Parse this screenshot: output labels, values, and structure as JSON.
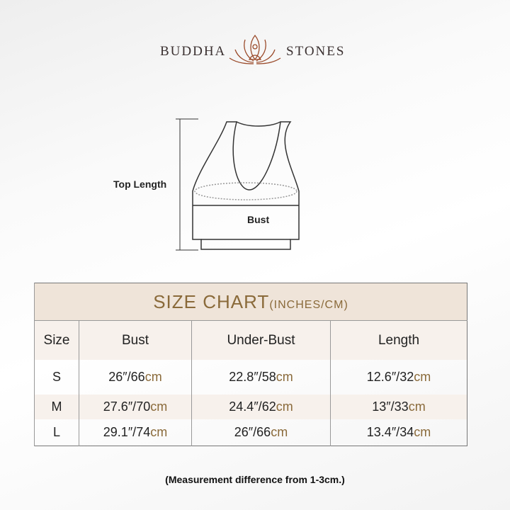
{
  "brand": {
    "left": "BUDDHA",
    "right": "STONES",
    "logo": "lotus-meditation-icon",
    "color": "#9a4a2a"
  },
  "diagram": {
    "top_length": "Top Length",
    "bust": "Bust"
  },
  "chart": {
    "title": "SIZE CHART",
    "title_units": "(INCHES/CM)",
    "headers": [
      "Size",
      "Bust",
      "Under-Bust",
      "Length"
    ],
    "rows": [
      {
        "size": "S",
        "bust": "26″/66",
        "under": "22.8″/58",
        "length": "12.6″/32"
      },
      {
        "size": "M",
        "bust": "27.6″/70",
        "under": "24.4″/62",
        "length": "13″/33"
      },
      {
        "size": "L",
        "bust": "29.1″/74",
        "under": "26″/66",
        "length": "13.4″/34"
      }
    ],
    "unit": "cm",
    "accent": "#8a6a3a",
    "header_bg": "#efe4d9"
  },
  "note": "(Measurement difference from 1-3cm.)"
}
